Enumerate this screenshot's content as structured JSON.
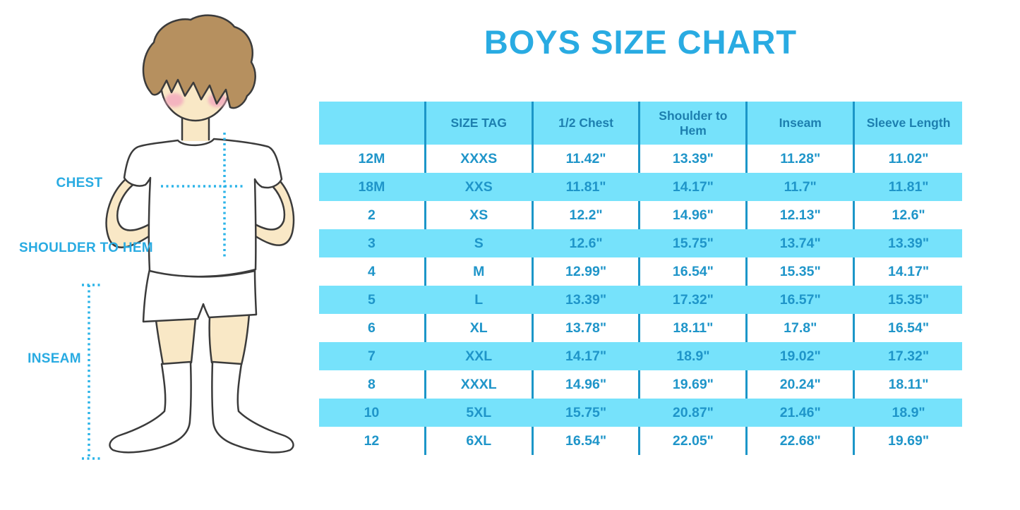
{
  "title": "BOYS SIZE CHART",
  "colors": {
    "accent": "#29ABE2",
    "table_fill": "#76E2FB",
    "divider": "#1C96C8",
    "header_text": "#1D7FAF",
    "body_text": "#1F95C9",
    "dots": "#2CB4E8",
    "skin": "#F9E8C6",
    "hair": "#B6905F",
    "blush": "#F2A8BD",
    "outline": "#3B3B3B"
  },
  "figure": {
    "labels": [
      {
        "id": "chest",
        "text": "CHEST"
      },
      {
        "id": "shoulder-to-hem",
        "text": "SHOULDER TO HEM"
      },
      {
        "id": "inseam",
        "text": "INSEAM"
      }
    ]
  },
  "chart_data": {
    "type": "table",
    "title": "BOYS SIZE CHART",
    "columns": [
      "",
      "SIZE TAG",
      "1/2 Chest",
      "Shoulder to Hem",
      "Inseam",
      "Sleeve Length"
    ],
    "rows": [
      [
        "12M",
        "XXXS",
        "11.42\"",
        "13.39\"",
        "11.28\"",
        "11.02\""
      ],
      [
        "18M",
        "XXS",
        "11.81\"",
        "14.17\"",
        "11.7\"",
        "11.81\""
      ],
      [
        "2",
        "XS",
        "12.2\"",
        "14.96\"",
        "12.13\"",
        "12.6\""
      ],
      [
        "3",
        "S",
        "12.6\"",
        "15.75\"",
        "13.74\"",
        "13.39\""
      ],
      [
        "4",
        "M",
        "12.99\"",
        "16.54\"",
        "15.35\"",
        "14.17\""
      ],
      [
        "5",
        "L",
        "13.39\"",
        "17.32\"",
        "16.57\"",
        "15.35\""
      ],
      [
        "6",
        "XL",
        "13.78\"",
        "18.11\"",
        "17.8\"",
        "16.54\""
      ],
      [
        "7",
        "XXL",
        "14.17\"",
        "18.9\"",
        "19.02\"",
        "17.32\""
      ],
      [
        "8",
        "XXXL",
        "14.96\"",
        "19.69\"",
        "20.24\"",
        "18.11\""
      ],
      [
        "10",
        "5XL",
        "15.75\"",
        "20.87\"",
        "21.46\"",
        "18.9\""
      ],
      [
        "12",
        "6XL",
        "16.54\"",
        "22.05\"",
        "22.68\"",
        "19.69\""
      ]
    ],
    "layout": {
      "stripe_pattern": "rows alternate white and cyan starting with white",
      "grid": "vertical dividers only"
    }
  }
}
